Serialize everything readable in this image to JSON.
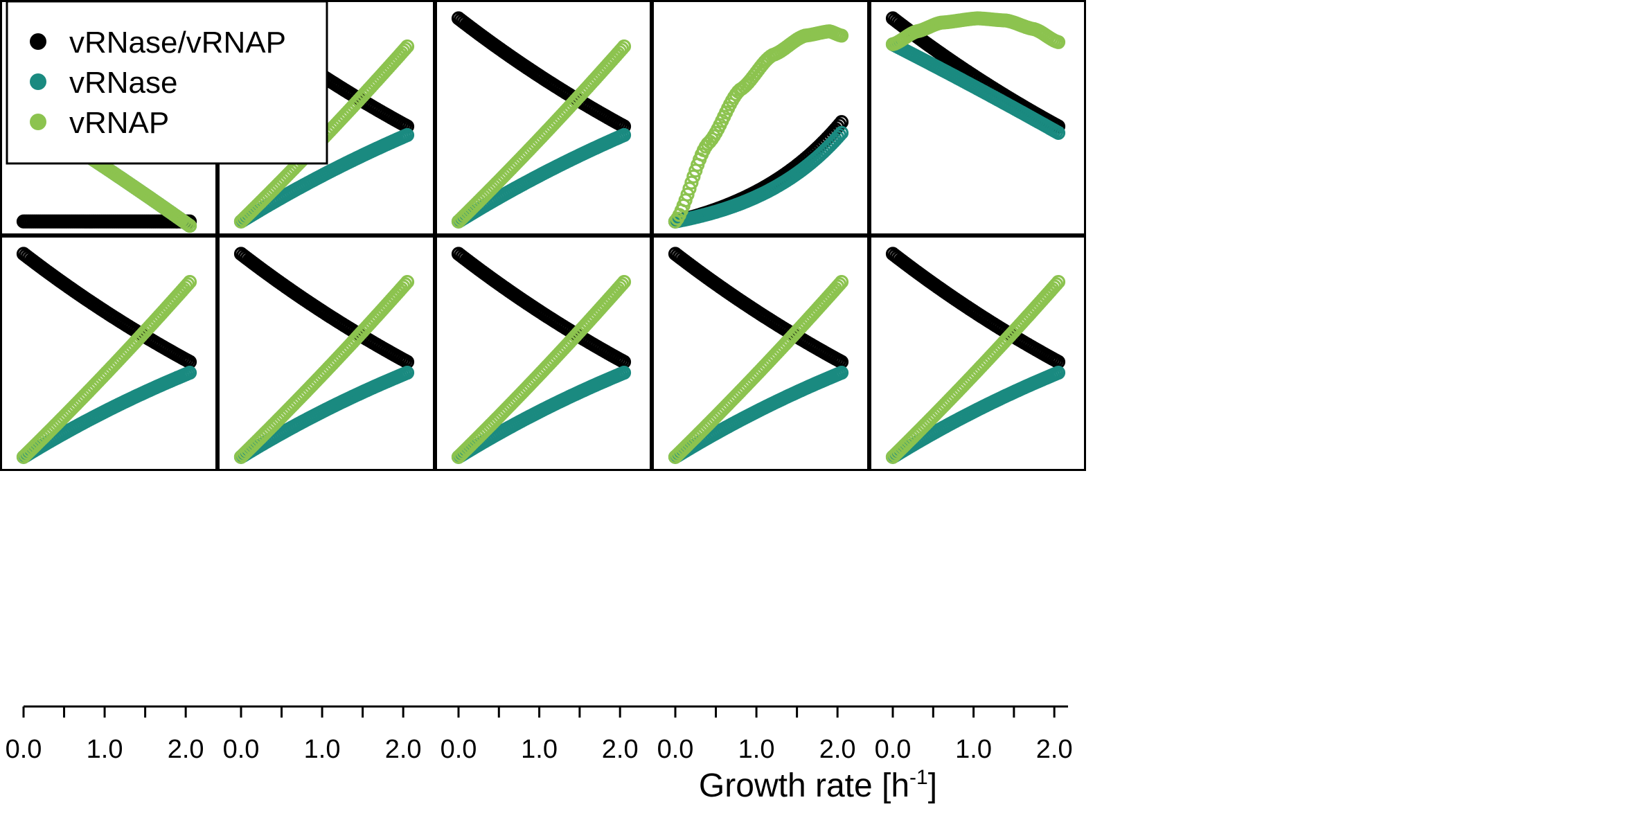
{
  "chart_data": {
    "type": "scatter",
    "layout": "2 rows x 5 columns small multiples, shared x axis",
    "xlabel": {
      "text": "Growth rate [h",
      "sup": "-1",
      "close": "]"
    },
    "xlim": [
      0,
      2.1
    ],
    "x_ticks": [
      0,
      0.5,
      1.0,
      1.5,
      2.0
    ],
    "x_tick_labels": [
      "0.0",
      "1.0",
      "2.0"
    ],
    "y_axis_shown": false,
    "y_scale": "relative (normalized per panel, no tick labels)",
    "x_values": {
      "start": 0,
      "end": 2.05,
      "count": 83
    },
    "legend": {
      "position": "top-left",
      "entries": [
        {
          "label": "vRNase/vRNAP",
          "color": "#000000"
        },
        {
          "label": "vRNase",
          "color": "#1a8a80"
        },
        {
          "label": "vRNAP",
          "color": "#8cc34f"
        }
      ]
    },
    "series_names": [
      "vRNase/vRNAP",
      "vRNase",
      "vRNAP"
    ],
    "panels": [
      {
        "panel": 1,
        "series": [
          {
            "name": "vRNase/vRNAP",
            "y_start": 0.02,
            "y_end": 0.02,
            "shape": 0
          },
          {
            "name": "vRNase",
            "y_start": 0.515,
            "y_end": 0.0,
            "shape": 0.12
          },
          {
            "name": "vRNAP",
            "y_start": 0.515,
            "y_end": 0.0,
            "shape": 0.12
          }
        ]
      },
      {
        "panel": 2,
        "series": [
          {
            "name": "vRNase/vRNAP",
            "y_start": 0.96,
            "y_end": 0.46,
            "shape": -0.35
          },
          {
            "name": "vRNase",
            "y_start": 0.02,
            "y_end": 0.42,
            "shape": -0.35
          },
          {
            "name": "vRNAP",
            "y_start": 0.02,
            "y_end": 0.83,
            "shape": 0.14
          }
        ]
      },
      {
        "panel": 3,
        "series": [
          {
            "name": "vRNase/vRNAP",
            "y_start": 0.96,
            "y_end": 0.46,
            "shape": -0.35
          },
          {
            "name": "vRNase",
            "y_start": 0.02,
            "y_end": 0.42,
            "shape": -0.35
          },
          {
            "name": "vRNAP",
            "y_start": 0.02,
            "y_end": 0.83,
            "shape": 0.14
          }
        ]
      },
      {
        "panel": 4,
        "series": [
          {
            "name": "vRNase/vRNAP",
            "y_start": 0.02,
            "y_end": 0.48,
            "shape": 1.6
          },
          {
            "name": "vRNase",
            "y_start": 0.02,
            "y_end": 0.43,
            "shape": 1.8
          },
          {
            "name": "vRNAP",
            "points": [
              [
                0,
                0.02
              ],
              [
                0.4,
                0.38
              ],
              [
                0.8,
                0.63
              ],
              [
                1.2,
                0.79
              ],
              [
                1.6,
                0.88
              ],
              [
                1.9,
                0.9
              ],
              [
                2.05,
                0.88
              ]
            ]
          }
        ]
      },
      {
        "panel": 5,
        "series": [
          {
            "name": "vRNase/vRNAP",
            "y_start": 0.96,
            "y_end": 0.46,
            "shape": -0.35
          },
          {
            "name": "vRNase",
            "y_start": 0.84,
            "y_end": 0.43,
            "shape": 0.1
          },
          {
            "name": "vRNAP",
            "points": [
              [
                0,
                0.84
              ],
              [
                0.3,
                0.9
              ],
              [
                0.6,
                0.94
              ],
              [
                1.05,
                0.96
              ],
              [
                1.4,
                0.95
              ],
              [
                1.75,
                0.91
              ],
              [
                2.05,
                0.85
              ]
            ]
          }
        ]
      },
      {
        "panel": 6,
        "series": [
          {
            "name": "vRNase/vRNAP",
            "y_start": 0.96,
            "y_end": 0.46,
            "shape": -0.35
          },
          {
            "name": "vRNase",
            "y_start": 0.02,
            "y_end": 0.41,
            "shape": -0.4
          },
          {
            "name": "vRNAP",
            "y_start": 0.02,
            "y_end": 0.83,
            "shape": 0.14
          }
        ]
      },
      {
        "panel": 7,
        "series": [
          {
            "name": "vRNase/vRNAP",
            "y_start": 0.96,
            "y_end": 0.46,
            "shape": -0.35
          },
          {
            "name": "vRNase",
            "y_start": 0.02,
            "y_end": 0.41,
            "shape": -0.4
          },
          {
            "name": "vRNAP",
            "y_start": 0.02,
            "y_end": 0.83,
            "shape": 0.14
          }
        ]
      },
      {
        "panel": 8,
        "series": [
          {
            "name": "vRNase/vRNAP",
            "y_start": 0.96,
            "y_end": 0.46,
            "shape": -0.35
          },
          {
            "name": "vRNase",
            "y_start": 0.02,
            "y_end": 0.41,
            "shape": -0.4
          },
          {
            "name": "vRNAP",
            "y_start": 0.02,
            "y_end": 0.83,
            "shape": 0.14
          }
        ]
      },
      {
        "panel": 9,
        "series": [
          {
            "name": "vRNase/vRNAP",
            "y_start": 0.96,
            "y_end": 0.46,
            "shape": -0.35
          },
          {
            "name": "vRNase",
            "y_start": 0.02,
            "y_end": 0.41,
            "shape": -0.4
          },
          {
            "name": "vRNAP",
            "y_start": 0.02,
            "y_end": 0.83,
            "shape": 0.14
          }
        ]
      },
      {
        "panel": 10,
        "series": [
          {
            "name": "vRNase/vRNAP",
            "y_start": 0.96,
            "y_end": 0.46,
            "shape": -0.35
          },
          {
            "name": "vRNase",
            "y_start": 0.02,
            "y_end": 0.41,
            "shape": -0.4
          },
          {
            "name": "vRNAP",
            "y_start": 0.02,
            "y_end": 0.83,
            "shape": 0.14
          }
        ]
      }
    ]
  }
}
